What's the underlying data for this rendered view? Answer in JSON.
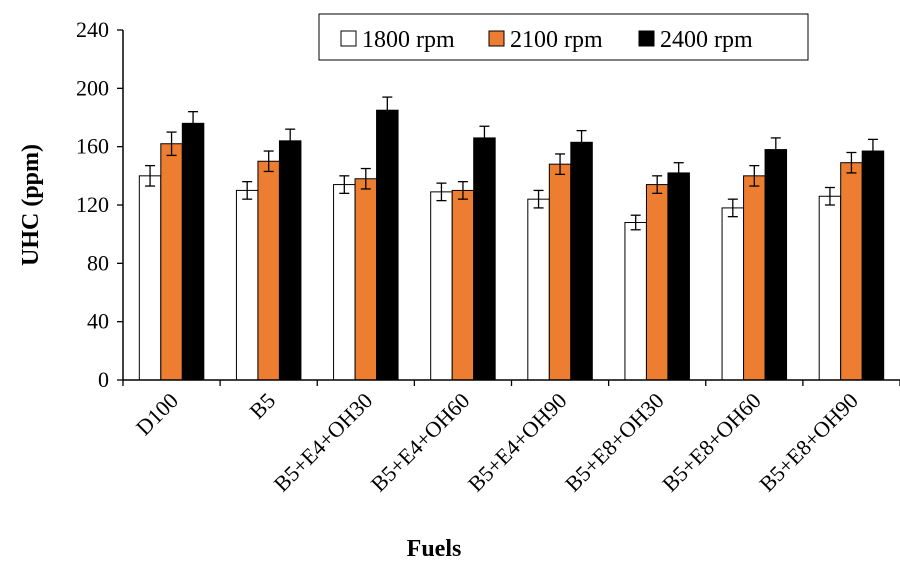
{
  "chart_data": {
    "type": "bar",
    "title": "",
    "xlabel": "Fuels",
    "ylabel": "UHC (ppm)",
    "ylim": [
      0,
      240
    ],
    "yticks": [
      0,
      40,
      80,
      120,
      160,
      200,
      240
    ],
    "categories": [
      "D100",
      "B5",
      "B5+E4+OH30",
      "B5+E4+OH60",
      "B5+E4+OH90",
      "B5+E8+OH30",
      "B5+E8+OH60",
      "B5+E8+OH90"
    ],
    "series": [
      {
        "name": "1800 rpm",
        "color": "#ffffff",
        "values": [
          140,
          130,
          134,
          129,
          124,
          108,
          118,
          126
        ],
        "errors": [
          7,
          6,
          6,
          6,
          6,
          5,
          6,
          6
        ]
      },
      {
        "name": "2100 rpm",
        "color": "#ED7D31",
        "values": [
          162,
          150,
          138,
          130,
          148,
          134,
          140,
          149
        ],
        "errors": [
          8,
          7,
          7,
          6,
          7,
          6,
          7,
          7
        ]
      },
      {
        "name": "2400 rpm",
        "color": "#000000",
        "values": [
          176,
          164,
          185,
          166,
          163,
          142,
          158,
          157
        ],
        "errors": [
          8,
          8,
          9,
          8,
          8,
          7,
          8,
          8
        ]
      }
    ],
    "grid": false,
    "legend_position": "top-right",
    "error_bars": true
  }
}
